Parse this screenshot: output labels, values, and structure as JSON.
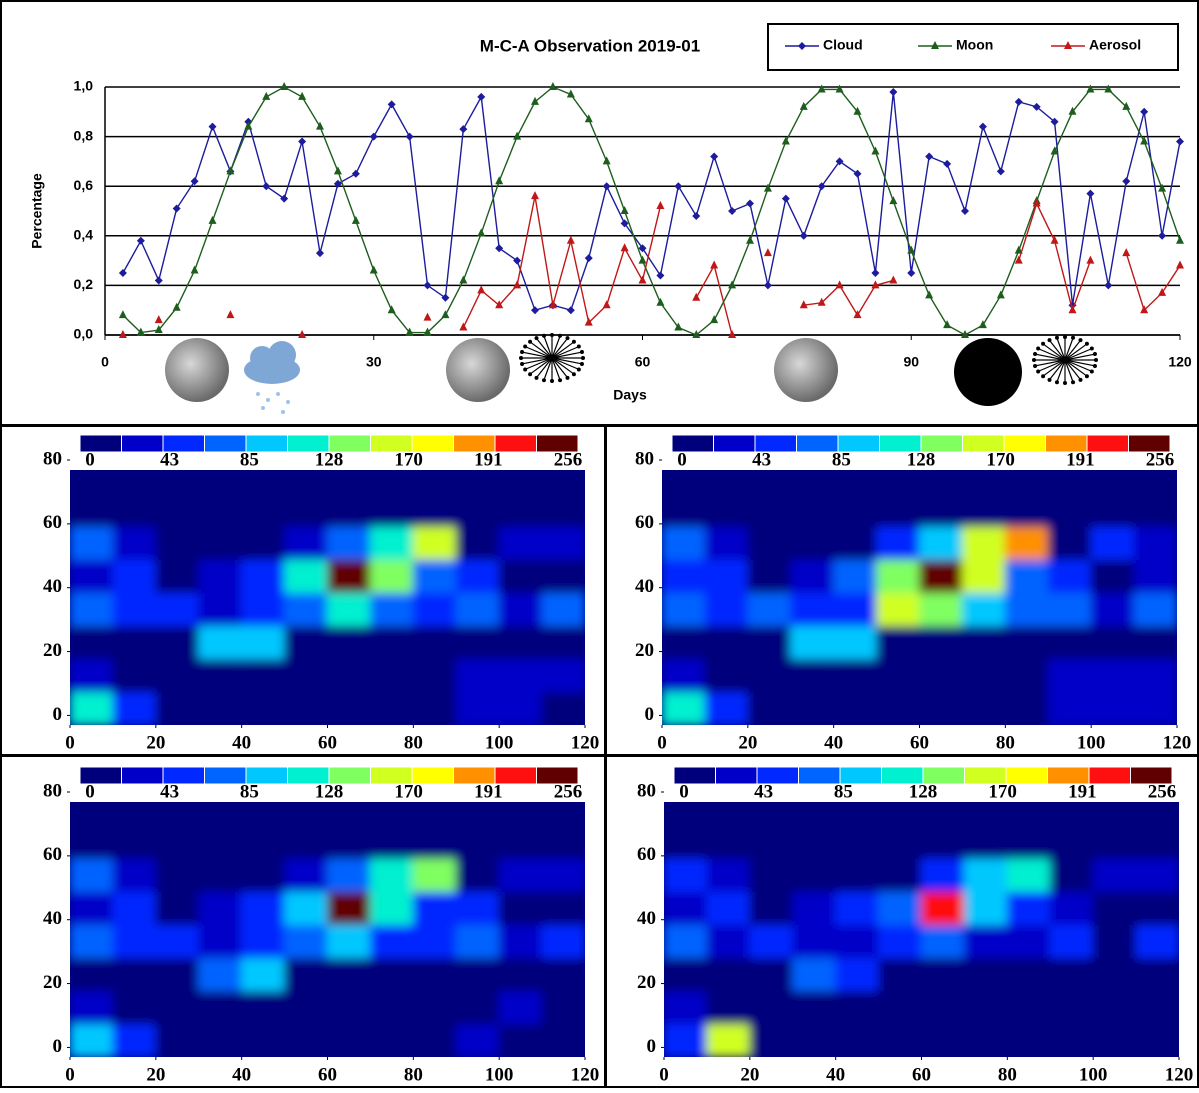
{
  "chart_data": [
    {
      "type": "line",
      "title": "M-C-A Observation 2019-01",
      "xlabel": "Days",
      "ylabel": "Percentage",
      "xlim": [
        0,
        120
      ],
      "xticks": [
        0,
        30,
        60,
        90,
        120
      ],
      "ylim": [
        0,
        1
      ],
      "yticks": [
        {
          "value": 0,
          "label": "0,0"
        },
        {
          "value": 0.2,
          "label": "0,2"
        },
        {
          "value": 0.4,
          "label": "0,4"
        },
        {
          "value": 0.6,
          "label": "0,6"
        },
        {
          "value": 0.8,
          "label": "0,8"
        },
        {
          "value": 1,
          "label": "1,0"
        }
      ],
      "grid": true,
      "legend": "top-right",
      "x": [
        2,
        4,
        6,
        8,
        10,
        12,
        14,
        16,
        18,
        20,
        22,
        24,
        26,
        28,
        30,
        32,
        34,
        36,
        38,
        40,
        42,
        44,
        46,
        48,
        50,
        52,
        54,
        56,
        58,
        60,
        62,
        64,
        66,
        68,
        70,
        72,
        74,
        76,
        78,
        80,
        82,
        84,
        86,
        88,
        90,
        92,
        94,
        96,
        98,
        100,
        102,
        104,
        106,
        108,
        110,
        112,
        114,
        116,
        118,
        120
      ],
      "series": [
        {
          "name": "Cloud",
          "color": "#1c1c9c",
          "marker": "diamond",
          "values": [
            0.25,
            0.38,
            0.22,
            0.51,
            0.62,
            0.84,
            0.66,
            0.86,
            0.6,
            0.55,
            0.78,
            0.33,
            0.61,
            0.65,
            0.8,
            0.93,
            0.8,
            0.2,
            0.15,
            0.83,
            0.96,
            0.35,
            0.3,
            0.1,
            0.12,
            0.1,
            0.31,
            0.6,
            0.45,
            0.35,
            0.24,
            0.6,
            0.48,
            0.72,
            0.5,
            0.53,
            0.2,
            0.55,
            0.4,
            0.6,
            0.7,
            0.65,
            0.25,
            0.98,
            0.25,
            0.72,
            0.69,
            0.5,
            0.84,
            0.66,
            0.94,
            0.92,
            0.86,
            0.12,
            0.57,
            0.2,
            0.62,
            0.9,
            0.4,
            0.78
          ]
        },
        {
          "name": "Moon",
          "color": "#1d5e1d",
          "marker": "triangle",
          "values": [
            0.08,
            0.01,
            0.02,
            0.11,
            0.26,
            0.46,
            0.66,
            0.84,
            0.96,
            1,
            0.96,
            0.84,
            0.66,
            0.46,
            0.26,
            0.1,
            0.01,
            0.01,
            0.08,
            0.22,
            0.41,
            0.62,
            0.8,
            0.94,
            1,
            0.97,
            0.87,
            0.7,
            0.5,
            0.3,
            0.13,
            0.03,
            0,
            0.06,
            0.2,
            0.38,
            0.59,
            0.78,
            0.92,
            0.99,
            0.99,
            0.9,
            0.74,
            0.54,
            0.34,
            0.16,
            0.04,
            0,
            0.04,
            0.16,
            0.34,
            0.54,
            0.74,
            0.9,
            0.99,
            0.99,
            0.92,
            0.78,
            0.59,
            0.38
          ]
        },
        {
          "name": "Aerosol",
          "color": "#c01818",
          "marker": "triangle",
          "values": [
            0,
            null,
            0.06,
            null,
            null,
            null,
            0.08,
            null,
            null,
            null,
            0,
            null,
            null,
            null,
            null,
            null,
            null,
            0.07,
            null,
            0.03,
            0.18,
            0.12,
            0.2,
            0.56,
            0.12,
            0.38,
            0.05,
            0.12,
            0.35,
            0.22,
            0.52,
            null,
            0.15,
            0.28,
            0,
            null,
            0.33,
            null,
            0.12,
            0.13,
            0.2,
            0.08,
            0.2,
            0.22,
            null,
            null,
            null,
            null,
            null,
            null,
            0.3,
            0.53,
            0.38,
            0.1,
            0.3,
            null,
            0.33,
            0.1,
            0.17,
            0.28
          ]
        }
      ]
    },
    {
      "type": "heatmap",
      "xlim": [
        0,
        120
      ],
      "xticks": [
        0,
        20,
        40,
        60,
        80,
        100,
        120
      ],
      "ylim": [
        -3,
        80
      ],
      "yticks": [
        0,
        20,
        40,
        60,
        80
      ],
      "zlim": [
        0,
        256
      ],
      "colorbar_ticks": [
        0,
        43,
        85,
        128,
        170,
        191,
        256
      ],
      "colorscale": [
        "#00007c",
        "#0000c8",
        "#0028ff",
        "#0064ff",
        "#00c8ff",
        "#00f0d0",
        "#80ff60",
        "#d0ff20",
        "#ffff00",
        "#ff9000",
        "#ff1010",
        "#600000"
      ],
      "z": [
        [
          120,
          60,
          15,
          10,
          10,
          10,
          10,
          10,
          10,
          30,
          25,
          20
        ],
        [
          40,
          20,
          10,
          10,
          10,
          10,
          10,
          10,
          10,
          25,
          35,
          25
        ],
        [
          15,
          10,
          10,
          90,
          100,
          15,
          10,
          10,
          10,
          15,
          15,
          10
        ],
        [
          80,
          60,
          60,
          40,
          50,
          80,
          110,
          70,
          60,
          80,
          30,
          70
        ],
        [
          40,
          55,
          15,
          30,
          60,
          110,
          240,
          130,
          70,
          50,
          15,
          20
        ],
        [
          75,
          40,
          10,
          10,
          15,
          30,
          80,
          120,
          160,
          15,
          40,
          40
        ],
        [
          10,
          10,
          10,
          10,
          10,
          10,
          10,
          10,
          10,
          10,
          10,
          15
        ],
        [
          10,
          10,
          10,
          10,
          10,
          10,
          10,
          10,
          10,
          10,
          10,
          10
        ]
      ]
    },
    {
      "type": "heatmap",
      "xlim": [
        0,
        120
      ],
      "xticks": [
        0,
        20,
        40,
        60,
        80,
        100,
        120
      ],
      "ylim": [
        -3,
        80
      ],
      "yticks": [
        0,
        20,
        40,
        60,
        80
      ],
      "zlim": [
        0,
        256
      ],
      "colorbar_ticks": [
        0,
        43,
        85,
        128,
        170,
        191,
        256
      ],
      "colorscale": [
        "#00007c",
        "#0000c8",
        "#0028ff",
        "#0064ff",
        "#00c8ff",
        "#00f0d0",
        "#80ff60",
        "#d0ff20",
        "#ffff00",
        "#ff9000",
        "#ff1010",
        "#600000"
      ],
      "z": [
        [
          110,
          60,
          15,
          10,
          10,
          10,
          10,
          10,
          10,
          30,
          30,
          25
        ],
        [
          40,
          20,
          10,
          10,
          10,
          10,
          10,
          10,
          10,
          25,
          35,
          30
        ],
        [
          15,
          10,
          10,
          95,
          100,
          15,
          10,
          10,
          10,
          15,
          15,
          10
        ],
        [
          85,
          60,
          65,
          45,
          60,
          150,
          130,
          90,
          80,
          80,
          40,
          70
        ],
        [
          45,
          60,
          15,
          30,
          70,
          140,
          250,
          170,
          80,
          60,
          20,
          25
        ],
        [
          80,
          40,
          10,
          10,
          15,
          50,
          90,
          150,
          210,
          15,
          50,
          40
        ],
        [
          10,
          10,
          10,
          10,
          10,
          10,
          10,
          10,
          10,
          10,
          10,
          15
        ],
        [
          10,
          10,
          10,
          10,
          10,
          10,
          10,
          10,
          10,
          10,
          10,
          10
        ]
      ]
    },
    {
      "type": "heatmap",
      "xlim": [
        0,
        120
      ],
      "xticks": [
        0,
        20,
        40,
        60,
        80,
        100,
        120
      ],
      "ylim": [
        -3,
        80
      ],
      "yticks": [
        0,
        20,
        40,
        60,
        80
      ],
      "zlim": [
        0,
        256
      ],
      "colorbar_ticks": [
        0,
        43,
        85,
        128,
        170,
        191,
        256
      ],
      "colorscale": [
        "#00007c",
        "#0000c8",
        "#0028ff",
        "#0064ff",
        "#00c8ff",
        "#00f0d0",
        "#80ff60",
        "#d0ff20",
        "#ffff00",
        "#ff9000",
        "#ff1010",
        "#600000"
      ],
      "z": [
        [
          90,
          45,
          15,
          10,
          10,
          10,
          10,
          10,
          10,
          25,
          20,
          15
        ],
        [
          35,
          15,
          10,
          10,
          10,
          10,
          10,
          10,
          10,
          20,
          30,
          20
        ],
        [
          15,
          10,
          10,
          80,
          90,
          15,
          10,
          10,
          10,
          15,
          15,
          10
        ],
        [
          75,
          50,
          55,
          35,
          45,
          70,
          90,
          60,
          50,
          70,
          25,
          60
        ],
        [
          40,
          50,
          15,
          30,
          55,
          100,
          235,
          110,
          60,
          45,
          15,
          20
        ],
        [
          70,
          35,
          10,
          10,
          15,
          25,
          70,
          110,
          140,
          15,
          35,
          35
        ],
        [
          10,
          10,
          10,
          10,
          10,
          10,
          10,
          10,
          10,
          10,
          10,
          15
        ],
        [
          10,
          10,
          10,
          10,
          10,
          10,
          10,
          10,
          10,
          10,
          10,
          10
        ]
      ]
    },
    {
      "type": "heatmap",
      "xlim": [
        0,
        120
      ],
      "xticks": [
        0,
        20,
        40,
        60,
        80,
        100,
        120
      ],
      "ylim": [
        -3,
        80
      ],
      "yticks": [
        0,
        20,
        40,
        60,
        80
      ],
      "zlim": [
        0,
        256
      ],
      "colorbar_ticks": [
        0,
        43,
        85,
        128,
        170,
        191,
        256
      ],
      "colorscale": [
        "#00007c",
        "#0000c8",
        "#0028ff",
        "#0064ff",
        "#00c8ff",
        "#00f0d0",
        "#80ff60",
        "#d0ff20",
        "#ffff00",
        "#ff9000",
        "#ff1010",
        "#600000"
      ],
      "z": [
        [
          60,
          150,
          20,
          5,
          10,
          10,
          10,
          10,
          5,
          10,
          10,
          10
        ],
        [
          40,
          20,
          10,
          10,
          10,
          10,
          10,
          5,
          10,
          15,
          20,
          10
        ],
        [
          15,
          10,
          10,
          70,
          60,
          15,
          10,
          10,
          10,
          10,
          10,
          10
        ],
        [
          65,
          40,
          45,
          30,
          35,
          55,
          70,
          40,
          35,
          55,
          20,
          50
        ],
        [
          35,
          45,
          10,
          25,
          45,
          80,
          225,
          90,
          50,
          40,
          10,
          20
        ],
        [
          55,
          25,
          5,
          5,
          10,
          20,
          50,
          90,
          120,
          10,
          30,
          30
        ],
        [
          10,
          5,
          10,
          10,
          5,
          10,
          10,
          10,
          10,
          10,
          10,
          10
        ],
        [
          10,
          10,
          10,
          10,
          10,
          10,
          10,
          10,
          10,
          10,
          10,
          10
        ]
      ]
    }
  ]
}
